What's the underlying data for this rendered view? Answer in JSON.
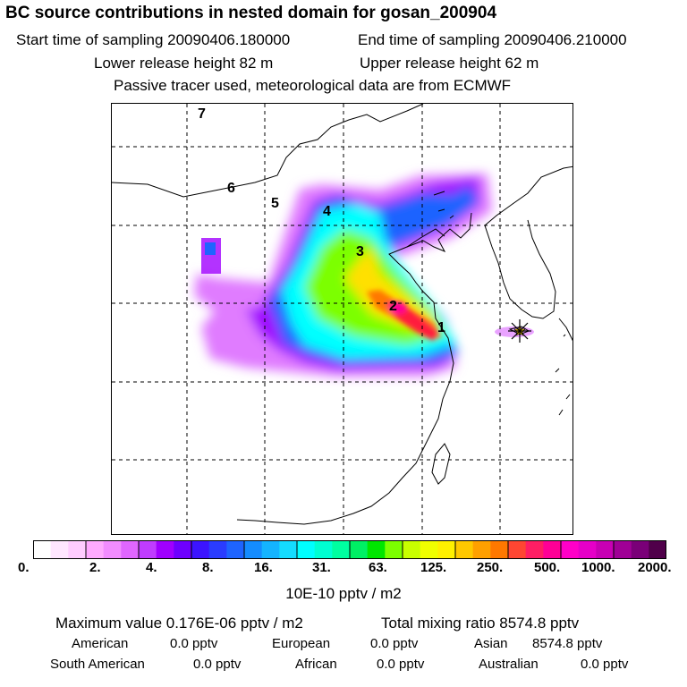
{
  "header": {
    "title": "BC  source contributions in nested domain for gosan_200904",
    "start": "Start time of sampling 20090406.180000",
    "end": "End time of sampling 20090406.210000",
    "lower": "Lower release height   82 m",
    "upper": "Upper release height   62 m",
    "note": "Passive tracer used, meteorological data are from ECMWF"
  },
  "map": {
    "region_labels": [
      "7",
      "6",
      "5",
      "4",
      "3",
      "2",
      "1"
    ],
    "receptor_marker": "star-icon"
  },
  "colorbar": {
    "colors": [
      "#ffffff",
      "#ffe6ff",
      "#ffccff",
      "#ffaaff",
      "#f28cff",
      "#e066ff",
      "#c03cff",
      "#a000ff",
      "#6e00ff",
      "#3c14ff",
      "#2a3cff",
      "#1e64ff",
      "#148cff",
      "#14b4ff",
      "#14dcff",
      "#00ffff",
      "#00ffd2",
      "#00ffa0",
      "#00f064",
      "#00e600",
      "#7cff00",
      "#c8ff00",
      "#f0ff00",
      "#fff000",
      "#ffc800",
      "#ffa000",
      "#ff7800",
      "#ff4632",
      "#ff1e64",
      "#ff0096",
      "#ff00c8",
      "#e600c8",
      "#c800b4",
      "#a00096",
      "#7a0078",
      "#50004a"
    ],
    "tick_labels": [
      "0.",
      "2.",
      "4.",
      "8.",
      "16.",
      "31.",
      "63.",
      "125.",
      "250.",
      "500.",
      "1000.",
      "2000."
    ],
    "units": "10E-10 pptv / m2"
  },
  "stats": {
    "maximum": "Maximum value  0.176E-06 pptv / m2",
    "total": "Total mixing ratio     8574.8 pptv",
    "american": "American",
    "american_val": "0.0 pptv",
    "european": "European",
    "european_val": "0.0 pptv",
    "asian": "Asian",
    "asian_val": "8574.8 pptv",
    "south_american": "South American",
    "south_american_val": "0.0 pptv",
    "african": "African",
    "african_val": "0.0 pptv",
    "australian": "Australian",
    "australian_val": "0.0 pptv"
  }
}
